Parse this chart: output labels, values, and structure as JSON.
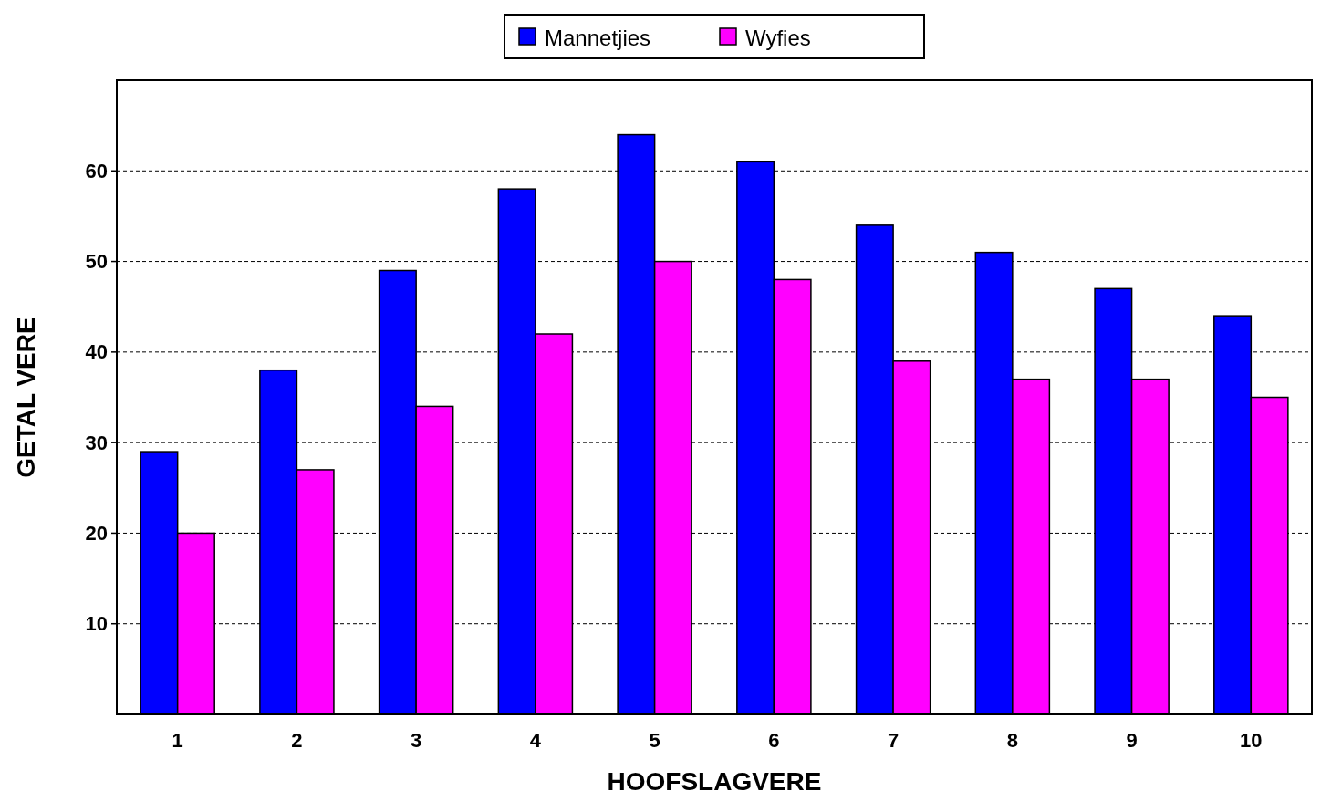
{
  "chart_data": {
    "type": "bar",
    "xlabel": "HOOFSLAGVERE",
    "ylabel": "GETAL VERE",
    "categories": [
      "1",
      "2",
      "3",
      "4",
      "5",
      "6",
      "7",
      "8",
      "9",
      "10"
    ],
    "series": [
      {
        "name": "Mannetjies",
        "color": "#0000ff",
        "values": [
          29,
          38,
          49,
          58,
          64,
          61,
          54,
          51,
          47,
          44
        ]
      },
      {
        "name": "Wyfies",
        "color": "#ff00ff",
        "values": [
          20,
          27,
          34,
          42,
          50,
          48,
          39,
          37,
          37,
          35
        ]
      }
    ],
    "ylim": [
      0,
      70
    ],
    "yticks": [
      10,
      20,
      30,
      40,
      50,
      60
    ],
    "grid": "y",
    "legend": "top"
  }
}
